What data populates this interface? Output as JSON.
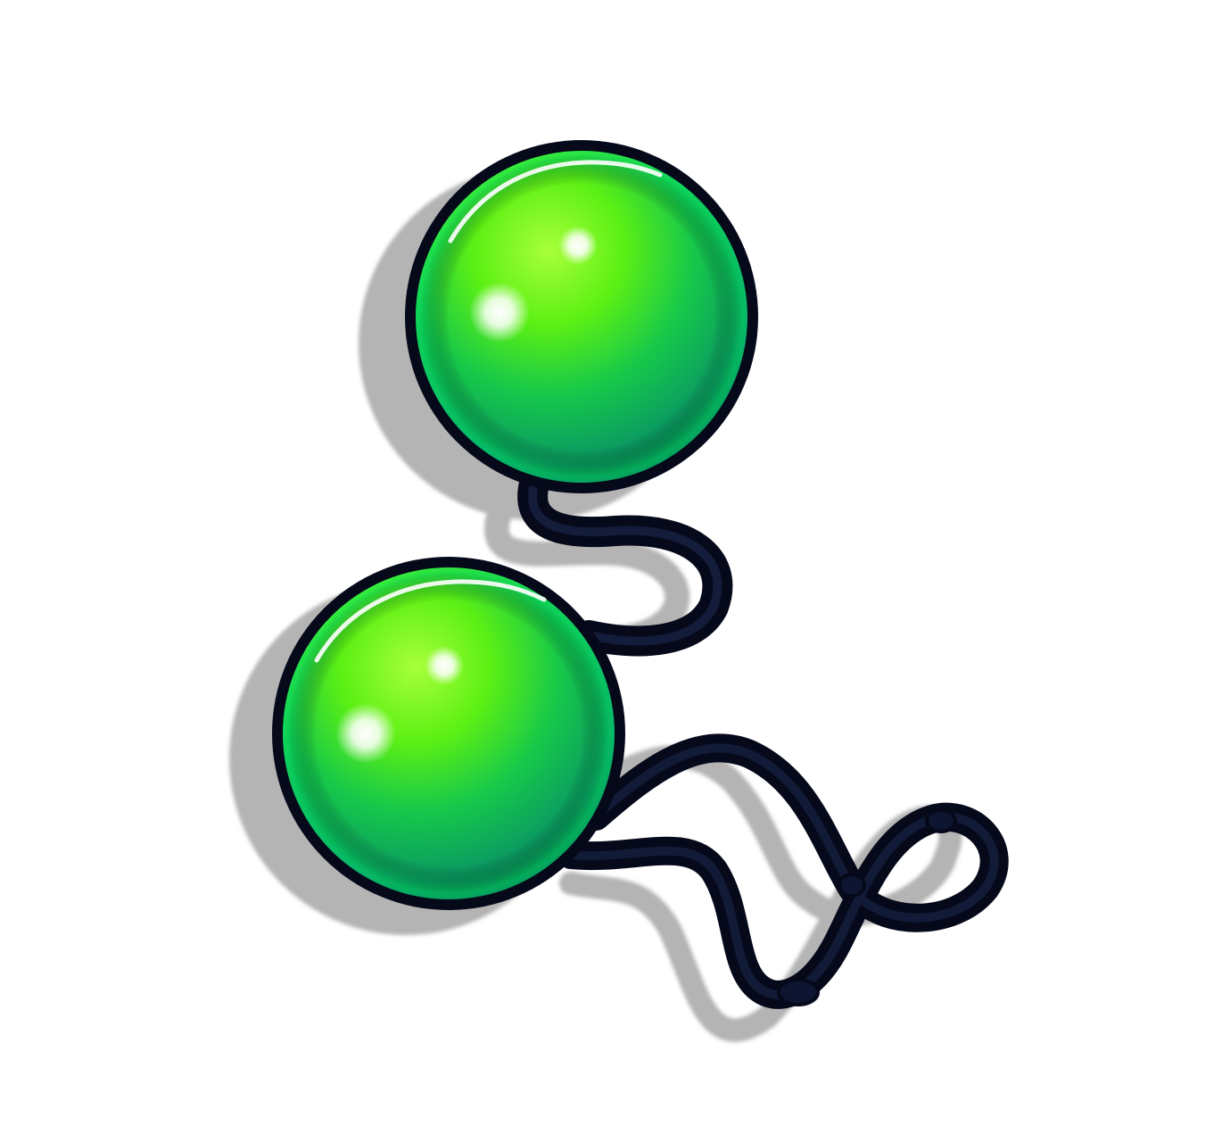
{
  "image": {
    "subject": "two-green-balls-on-cord-icon",
    "colors": {
      "background": "#ffffff",
      "ball_light": "#7cf21a",
      "ball_mid": "#1fd13a",
      "ball_dark": "#0a7a52",
      "outline": "#06091a",
      "cord": "#0d1530",
      "shadow": "#b4b4b4"
    },
    "elements": [
      {
        "name": "upper-ball",
        "icon": "sphere"
      },
      {
        "name": "lower-ball",
        "icon": "sphere"
      },
      {
        "name": "connecting-cord",
        "icon": "cord"
      },
      {
        "name": "loop-cord",
        "icon": "cord-loop"
      }
    ]
  }
}
